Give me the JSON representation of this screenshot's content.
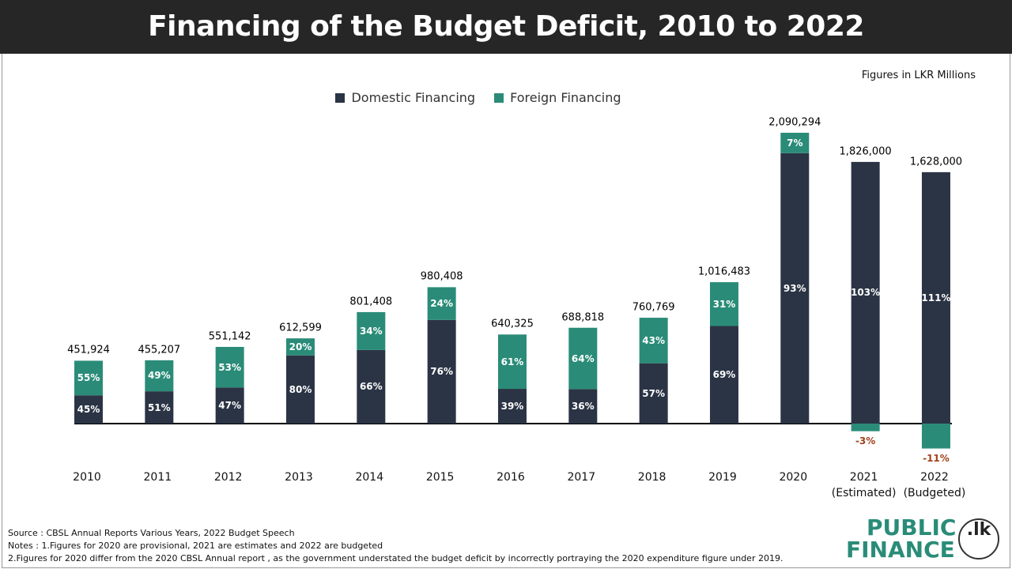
{
  "chart_data": {
    "type": "bar",
    "stacked": true,
    "title": "Financing of the Budget Deficit, 2010 to 2022",
    "note": "Figures in LKR Millions",
    "categories": [
      "2010",
      "2011",
      "2012",
      "2013",
      "2014",
      "2015",
      "2016",
      "2017",
      "2018",
      "2019",
      "2020",
      "2021 (Estimated)",
      "2022 (Budgeted)"
    ],
    "series": [
      {
        "name": "Domestic Financing",
        "color": "#2b3445",
        "values": [
          45,
          51,
          47,
          80,
          66,
          76,
          39,
          36,
          57,
          69,
          93,
          103,
          111
        ],
        "value_labels": [
          "45%",
          "51%",
          "47%",
          "80%",
          "66%",
          "76%",
          "39%",
          "36%",
          "57%",
          "69%",
          "93%",
          "103%",
          "111%"
        ]
      },
      {
        "name": "Foreign Financing",
        "color": "#2a8c78",
        "values": [
          55,
          49,
          53,
          20,
          34,
          24,
          61,
          64,
          43,
          31,
          7,
          -3,
          -11
        ],
        "value_labels": [
          "55%",
          "49%",
          "53%",
          "20%",
          "34%",
          "24%",
          "61%",
          "64%",
          "43%",
          "31%",
          "7%",
          "-3%",
          "-11%"
        ]
      }
    ],
    "totals": {
      "values": [
        451924,
        455207,
        551142,
        612599,
        801408,
        980408,
        640325,
        688818,
        760769,
        1016483,
        2090294,
        1826000,
        1628000
      ],
      "value_labels": [
        "451,924",
        "455,207",
        "551,142",
        "612,599",
        "801,408",
        "980,408",
        "640,325",
        "688,818",
        "760,769",
        "1,016,483",
        "2,090,294",
        "1,826,000",
        "1,628,000"
      ]
    }
  },
  "footer": {
    "source": "Source : CBSL Annual Reports Various Years, 2022 Budget Speech",
    "notes": [
      "Notes : 1.Figures for 2020 are provisional, 2021 are estimates and 2022 are budgeted",
      "2.Figures for 2020 differ from the 2020 CBSL Annual report , as the government understated the budget deficit by incorrectly portraying the 2020 expenditure figure under 2019."
    ],
    "logo": {
      "line1": "PUBLIC",
      "line2": "FINANCE",
      "badge": ".lk"
    }
  }
}
